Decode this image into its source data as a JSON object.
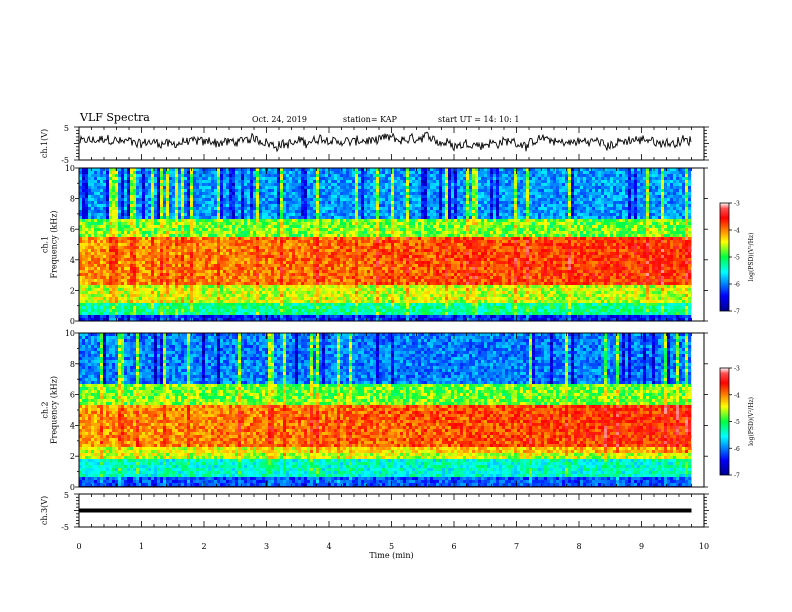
{
  "header": {
    "title": "VLF Spectra",
    "date": "Oct. 24, 2019",
    "station": "station= KAP",
    "start": "start  UT =   14: 10: 1"
  },
  "chart_data": [
    {
      "type": "line",
      "panel": "waveform-ch1",
      "ylabel": "ch.1(V)",
      "ylim": [
        -5,
        5
      ],
      "xlim": [
        0,
        9.8
      ],
      "y_ticks": [
        "5",
        "-5"
      ],
      "description_values": {
        "mean": 0.5,
        "amplitude": 2.5
      }
    },
    {
      "type": "heatmap",
      "panel": "spectrogram-ch1",
      "ylabel": "ch.1\nFrequency (kHz)",
      "ylim": [
        0,
        10
      ],
      "xlim": [
        0,
        9.8
      ],
      "y_ticks": [
        "0",
        "2",
        "4",
        "6",
        "8",
        "10"
      ],
      "colorbar": {
        "label": "log(PSD)(V²/Hz)",
        "range": [
          -7,
          -3
        ],
        "ticks": [
          "-3",
          "-4",
          "-5",
          "-6",
          "-7"
        ]
      },
      "bands": [
        {
          "freq": [
            0,
            0.3
          ],
          "level": -6.4
        },
        {
          "freq": [
            0.3,
            1.2
          ],
          "level": -5.2
        },
        {
          "freq": [
            1.2,
            2.3
          ],
          "level": -4.6
        },
        {
          "freq": [
            2.3,
            5.4
          ],
          "level": -4.1
        },
        {
          "freq": [
            5.4,
            6.6
          ],
          "level": -4.8
        },
        {
          "freq": [
            6.6,
            10
          ],
          "level": -5.9
        }
      ]
    },
    {
      "type": "heatmap",
      "panel": "spectrogram-ch2",
      "ylabel": "ch.2\nFrequency (kHz)",
      "ylim": [
        0,
        10
      ],
      "xlim": [
        0,
        9.8
      ],
      "y_ticks": [
        "0",
        "2",
        "4",
        "6",
        "8",
        "10"
      ],
      "colorbar": {
        "label": "log(PSD)(V²/Hz)",
        "range": [
          -7,
          -3
        ],
        "ticks": [
          "-3",
          "-4",
          "-5",
          "-6",
          "-7"
        ]
      },
      "bands": [
        {
          "freq": [
            0,
            0.6
          ],
          "level": -6.2
        },
        {
          "freq": [
            0.6,
            1.8
          ],
          "level": -5.4
        },
        {
          "freq": [
            1.8,
            2.5
          ],
          "level": -4.6
        },
        {
          "freq": [
            2.5,
            5.4
          ],
          "level": -4.1
        },
        {
          "freq": [
            5.4,
            6.6
          ],
          "level": -4.8
        },
        {
          "freq": [
            6.6,
            10
          ],
          "level": -6.0
        }
      ]
    },
    {
      "type": "line",
      "panel": "waveform-ch3",
      "ylabel": "ch.3(V)",
      "ylim": [
        -5,
        5
      ],
      "xlim": [
        0,
        9.8
      ],
      "y_ticks": [
        "5",
        "-5"
      ],
      "values_constant": 0
    }
  ],
  "x_axis": {
    "label": "Time (min)",
    "range": [
      0,
      10
    ],
    "ticks": [
      "0",
      "1",
      "2",
      "3",
      "4",
      "5",
      "6",
      "7",
      "8",
      "9",
      "10"
    ]
  }
}
